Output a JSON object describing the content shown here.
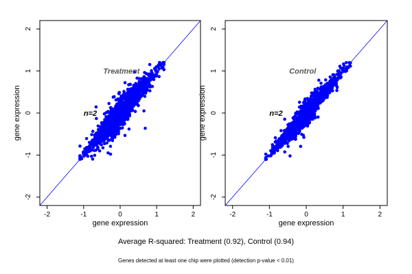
{
  "chart_data": [
    {
      "type": "scatter",
      "annotation": "Treatment",
      "annotation_color": "#555555",
      "n_label": "n=2",
      "xlabel": "gene expression",
      "ylabel": "gene expression",
      "xlim": [
        -2.2,
        2.2
      ],
      "ylim": [
        -2.2,
        2.2
      ],
      "xticks": [
        "-2",
        "-1",
        "0",
        "1",
        "2"
      ],
      "yticks": [
        "-2",
        "-1",
        "0",
        "1",
        "2"
      ],
      "reference_line": "y = x",
      "point_color": "#0000ff",
      "cloud": {
        "x_range": [
          -1.1,
          1.2
        ],
        "y_range": [
          -1.1,
          1.2
        ],
        "correlation": 0.92
      }
    },
    {
      "type": "scatter",
      "annotation": "Control",
      "annotation_color": "#555555",
      "n_label": "n=2",
      "xlabel": "gene expression",
      "ylabel": "gene expression",
      "xlim": [
        -2.2,
        2.2
      ],
      "ylim": [
        -2.2,
        2.2
      ],
      "xticks": [
        "-2",
        "-1",
        "0",
        "1",
        "2"
      ],
      "yticks": [
        "-2",
        "-1",
        "0",
        "1",
        "2"
      ],
      "reference_line": "y = x",
      "point_color": "#0000ff",
      "cloud": {
        "x_range": [
          -1.1,
          1.2
        ],
        "y_range": [
          -1.1,
          1.2
        ],
        "correlation": 0.94
      }
    }
  ],
  "caption": "Average R-squared: Treatment (0.92), Control (0.94)",
  "footnote": "Genes detected at least one chip were plotted (detection p-value < 0.01)"
}
